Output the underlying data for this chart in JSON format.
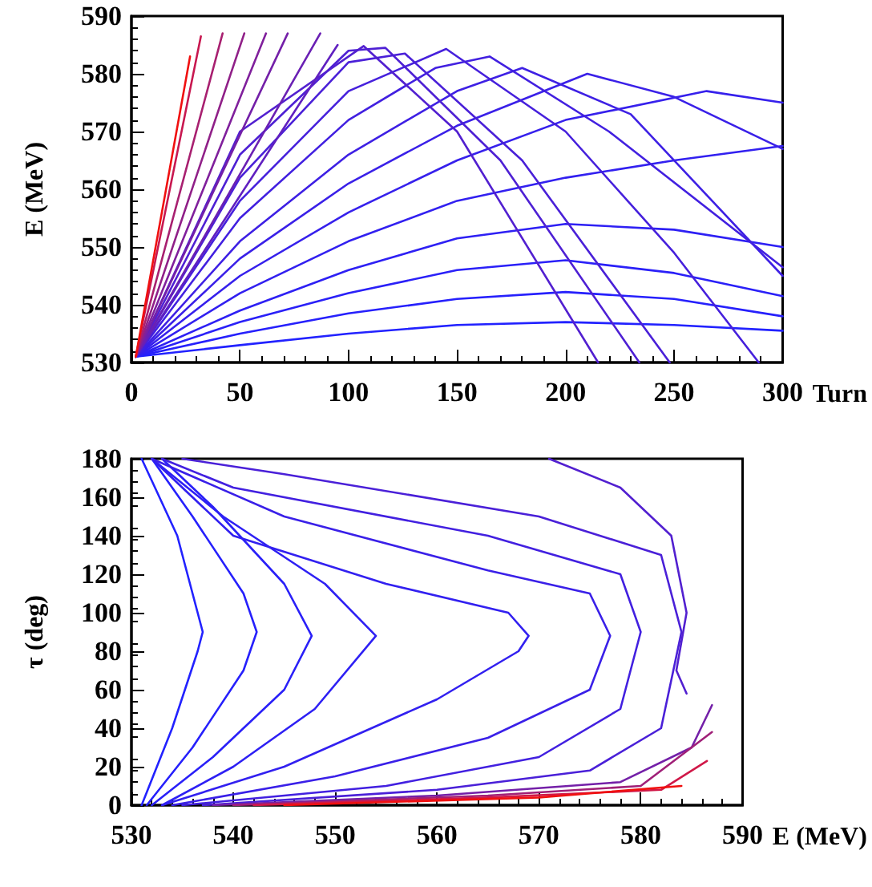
{
  "chart_data": [
    {
      "type": "line",
      "xlabel": "Turn",
      "ylabel": "E (MeV)",
      "xlim": [
        0,
        300
      ],
      "ylim": [
        530,
        590
      ],
      "xticks": [
        0,
        50,
        100,
        150,
        200,
        250,
        300
      ],
      "yticks": [
        530,
        540,
        550,
        560,
        570,
        580,
        590
      ],
      "series": [
        {
          "color": "#2222ff",
          "x": [
            2,
            50,
            100,
            150,
            200,
            250,
            300
          ],
          "values": [
            531,
            533,
            535,
            536.5,
            537,
            536.5,
            535.5
          ]
        },
        {
          "color": "#2620fc",
          "x": [
            2,
            50,
            100,
            150,
            200,
            250,
            300
          ],
          "values": [
            531,
            535,
            538.5,
            541,
            542.2,
            541,
            538
          ]
        },
        {
          "color": "#2a20f8",
          "x": [
            2,
            50,
            100,
            150,
            200,
            250,
            300
          ],
          "values": [
            531,
            537,
            542,
            546,
            547.7,
            545.5,
            541.5
          ]
        },
        {
          "color": "#2e20f4",
          "x": [
            2,
            50,
            100,
            150,
            200,
            250,
            300
          ],
          "values": [
            531,
            539,
            546,
            551.5,
            554,
            553,
            550
          ]
        },
        {
          "color": "#3220f0",
          "x": [
            2,
            50,
            100,
            150,
            200,
            250,
            300
          ],
          "values": [
            531,
            542,
            551,
            558,
            562,
            565,
            567.5
          ]
        },
        {
          "color": "#3620ec",
          "x": [
            2,
            50,
            100,
            150,
            200,
            265,
            300
          ],
          "values": [
            531,
            545,
            556,
            565,
            572,
            577,
            575
          ]
        },
        {
          "color": "#3a20e8",
          "x": [
            2,
            50,
            100,
            150,
            210,
            250,
            300
          ],
          "values": [
            531,
            548,
            561,
            571,
            580,
            576,
            567
          ]
        },
        {
          "color": "#3e20e4",
          "x": [
            2,
            50,
            100,
            150,
            180,
            230,
            300
          ],
          "values": [
            531,
            551,
            566,
            577,
            581,
            573,
            545
          ]
        },
        {
          "color": "#4220e0",
          "x": [
            2,
            50,
            100,
            140,
            165,
            220,
            300
          ],
          "values": [
            531,
            555,
            572,
            581,
            583,
            570,
            546.5
          ]
        },
        {
          "color": "#4620dc",
          "x": [
            2,
            50,
            100,
            145,
            200,
            250,
            289
          ],
          "values": [
            531,
            558,
            577,
            584.3,
            570,
            549,
            530
          ]
        },
        {
          "color": "#4a20d8",
          "x": [
            2,
            50,
            100,
            126,
            180,
            248
          ],
          "values": [
            531,
            562,
            582,
            583.5,
            565,
            530
          ]
        },
        {
          "color": "#4e20d4",
          "x": [
            2,
            50,
            100,
            117,
            170,
            234
          ],
          "values": [
            531,
            566,
            584,
            584.5,
            565,
            530
          ]
        },
        {
          "color": "#5220d0",
          "x": [
            2,
            50,
            107,
            150,
            215
          ],
          "values": [
            531,
            570,
            584.8,
            570,
            530
          ]
        },
        {
          "color": "#6020c0",
          "x": [
            2,
            95
          ],
          "values": [
            531,
            585
          ]
        },
        {
          "color": "#6a20b4",
          "x": [
            2,
            87
          ],
          "values": [
            531,
            587
          ]
        },
        {
          "color": "#7420a8",
          "x": [
            2,
            72
          ],
          "values": [
            531,
            587
          ]
        },
        {
          "color": "#80209c",
          "x": [
            2,
            62
          ],
          "values": [
            531,
            587
          ]
        },
        {
          "color": "#902088",
          "x": [
            2,
            52
          ],
          "values": [
            531,
            587
          ]
        },
        {
          "color": "#a82070",
          "x": [
            2,
            42
          ],
          "values": [
            531,
            587
          ]
        },
        {
          "color": "#c81850",
          "x": [
            2,
            32
          ],
          "values": [
            531,
            586.5
          ]
        },
        {
          "color": "#f01010",
          "x": [
            2,
            27
          ],
          "values": [
            531,
            583
          ]
        }
      ]
    },
    {
      "type": "line",
      "xlabel": "E (MeV)",
      "ylabel": "τ (deg)",
      "xlim": [
        530,
        590
      ],
      "ylim": [
        0,
        180
      ],
      "xticks": [
        530,
        540,
        550,
        560,
        570,
        580,
        590
      ],
      "yticks": [
        0,
        20,
        40,
        60,
        80,
        100,
        120,
        140,
        160,
        180
      ],
      "series": [
        {
          "color": "#2222ff",
          "x": [
            531,
            534,
            536.5,
            537,
            536.5,
            534.5,
            531
          ],
          "values": [
            0,
            40,
            80,
            90,
            100,
            140,
            180
          ]
        },
        {
          "color": "#2620fc",
          "x": [
            531.5,
            536,
            541,
            542.3,
            541,
            536,
            532
          ],
          "values": [
            0,
            30,
            70,
            90,
            110,
            150,
            180
          ]
        },
        {
          "color": "#2a20f8",
          "x": [
            532,
            538,
            545,
            547.7,
            545,
            538,
            533
          ],
          "values": [
            0,
            25,
            60,
            88,
            115,
            155,
            180
          ]
        },
        {
          "color": "#2e20f4",
          "x": [
            533,
            540,
            548,
            554,
            549,
            539,
            532
          ],
          "values": [
            0,
            20,
            50,
            88,
            115,
            150,
            180
          ]
        },
        {
          "color": "#3220f0",
          "x": [
            533,
            545,
            560,
            568,
            569,
            567,
            555,
            540,
            532
          ],
          "values": [
            0,
            20,
            55,
            80,
            88,
            100,
            115,
            140,
            180
          ]
        },
        {
          "color": "#3a20e8",
          "x": [
            534,
            550,
            565,
            575,
            577,
            575,
            565,
            545,
            532
          ],
          "values": [
            0,
            15,
            35,
            60,
            88,
            110,
            122,
            150,
            180
          ]
        },
        {
          "color": "#4220e0",
          "x": [
            535,
            555,
            570,
            578,
            580,
            578,
            565,
            540,
            533
          ],
          "values": [
            0,
            10,
            25,
            50,
            90,
            120,
            140,
            165,
            180
          ]
        },
        {
          "color": "#4a20d8",
          "x": [
            537,
            560,
            575,
            582,
            584,
            582,
            570,
            545,
            535
          ],
          "values": [
            0,
            8,
            18,
            40,
            90,
            130,
            150,
            172,
            180
          ]
        },
        {
          "color": "#5220d0",
          "x": [
            571,
            578,
            583,
            584.5,
            583.5,
            584.5
          ],
          "values": [
            180,
            165,
            140,
            100,
            70,
            58
          ]
        },
        {
          "color": "#7420a8",
          "x": [
            538,
            560,
            578,
            585,
            587
          ],
          "values": [
            0,
            5,
            12,
            30,
            52
          ]
        },
        {
          "color": "#a02078",
          "x": [
            540,
            565,
            580,
            587
          ],
          "values": [
            0,
            5,
            10,
            38
          ]
        },
        {
          "color": "#d01848",
          "x": [
            542,
            565,
            582,
            586.5
          ],
          "values": [
            0,
            4,
            8,
            23
          ]
        },
        {
          "color": "#f01010",
          "x": [
            545,
            570,
            584
          ],
          "values": [
            0,
            4,
            10
          ]
        }
      ]
    }
  ]
}
